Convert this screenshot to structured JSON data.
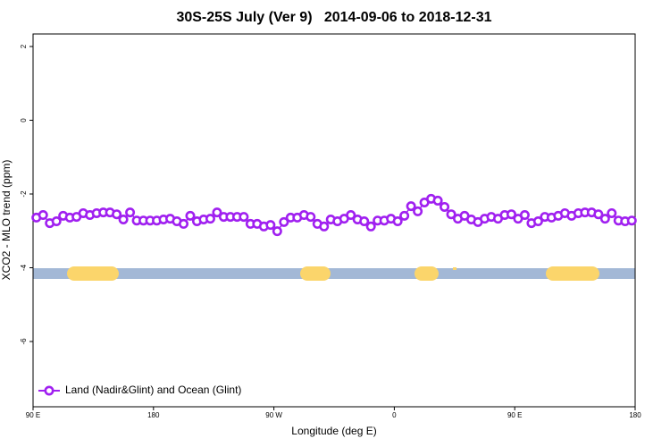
{
  "chart_data": {
    "type": "line",
    "title": "30S-25S July (Ver 9)   2014-09-06 to 2018-12-31",
    "x_label": "Longitude (deg E)",
    "y_label": "XCO2 - MLO trend (ppm)",
    "xlim": [
      90,
      540
    ],
    "xticks": [
      {
        "value": 90,
        "label": "90 E"
      },
      180,
      {
        "value": 270,
        "label": "90 W"
      },
      {
        "value": 360,
        "label": "0"
      },
      {
        "value": 450,
        "label": "90 E"
      },
      {
        "value": 540,
        "label": "180"
      }
    ],
    "ylim": [
      -7.77,
      2.34
    ],
    "yticks": [
      2,
      0,
      -2,
      -4,
      -6
    ],
    "legend": "bottom-left",
    "x": [
      92.5,
      97.5,
      102.5,
      107.5,
      112.5,
      117.5,
      122.5,
      127.5,
      132.5,
      137.5,
      142.5,
      147.5,
      152.5,
      157.5,
      162.5,
      167.5,
      172.5,
      177.5,
      182.5,
      187.5,
      192.5,
      197.5,
      202.5,
      207.5,
      212.5,
      217.5,
      222.5,
      227.5,
      232.5,
      237.5,
      242.5,
      247.5,
      252.5,
      257.5,
      262.5,
      267.5,
      272.5,
      277.5,
      282.5,
      287.5,
      292.5,
      297.5,
      302.5,
      307.5,
      312.5,
      317.5,
      322.5,
      327.5,
      332.5,
      337.5,
      342.5,
      347.5,
      352.5,
      357.5,
      362.5,
      367.5,
      372.5,
      377.5,
      382.5,
      387.5,
      392.5,
      397.5,
      402.5,
      407.5,
      412.5,
      417.5,
      422.5,
      427.5,
      432.5,
      437.5,
      442.5,
      447.5,
      452.5,
      457.5,
      462.5,
      467.5,
      472.5,
      477.5,
      482.5,
      487.5,
      492.5,
      497.5,
      502.5,
      507.5,
      512.5,
      517.5,
      522.5,
      527.5,
      532.5,
      537.5
    ],
    "series": [
      {
        "name": "Land (Nadir&Glint) and Ocean (Glint)",
        "color": "#a020f0",
        "values": [
          -2.64,
          -2.57,
          -2.79,
          -2.74,
          -2.59,
          -2.64,
          -2.62,
          -2.52,
          -2.57,
          -2.52,
          -2.5,
          -2.5,
          -2.55,
          -2.69,
          -2.5,
          -2.72,
          -2.72,
          -2.72,
          -2.72,
          -2.69,
          -2.67,
          -2.74,
          -2.81,
          -2.59,
          -2.74,
          -2.69,
          -2.67,
          -2.5,
          -2.62,
          -2.62,
          -2.62,
          -2.62,
          -2.81,
          -2.81,
          -2.88,
          -2.84,
          -3.01,
          -2.76,
          -2.64,
          -2.64,
          -2.57,
          -2.62,
          -2.81,
          -2.88,
          -2.69,
          -2.74,
          -2.67,
          -2.57,
          -2.69,
          -2.74,
          -2.88,
          -2.72,
          -2.72,
          -2.67,
          -2.74,
          -2.59,
          -2.33,
          -2.47,
          -2.23,
          -2.13,
          -2.18,
          -2.35,
          -2.55,
          -2.67,
          -2.59,
          -2.69,
          -2.76,
          -2.67,
          -2.62,
          -2.67,
          -2.57,
          -2.55,
          -2.67,
          -2.57,
          -2.79,
          -2.74,
          -2.62,
          -2.64,
          -2.59,
          -2.52,
          -2.59,
          -2.52,
          -2.5,
          -2.5,
          -2.55,
          -2.67,
          -2.52,
          -2.72,
          -2.74,
          -2.72
        ]
      }
    ]
  }
}
